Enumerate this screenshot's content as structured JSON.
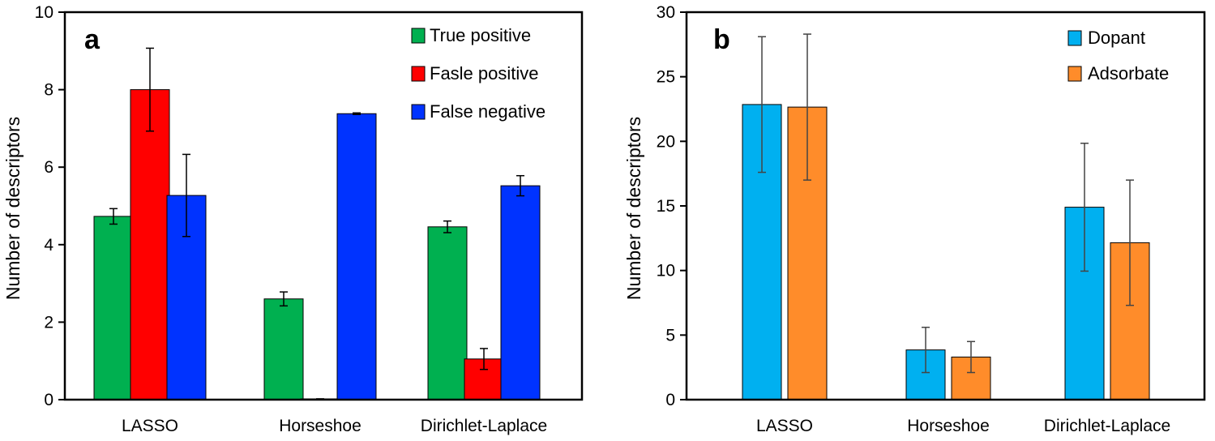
{
  "chart_data": [
    {
      "type": "bar",
      "panel_label": "a",
      "title": "",
      "xlabel": "",
      "ylabel": "Number of descriptors",
      "ylim": [
        0,
        10
      ],
      "yticks": [
        0,
        2,
        4,
        6,
        8,
        10
      ],
      "grid": false,
      "legend_position": "top-right",
      "categories": [
        "LASSO",
        "Horseshoe",
        "Dirichlet-Laplace"
      ],
      "series": [
        {
          "name": "True positive",
          "color": "#00b050",
          "values": [
            4.73,
            2.6,
            4.46
          ],
          "errors": [
            0.2,
            0.18,
            0.15
          ]
        },
        {
          "name": "Fasle positive",
          "color": "#ff0000",
          "values": [
            8.0,
            0.02,
            1.05
          ],
          "errors": [
            1.07,
            0.0,
            0.27
          ]
        },
        {
          "name": "False negative",
          "color": "#0033ff",
          "values": [
            5.27,
            7.38,
            5.52
          ],
          "errors": [
            1.06,
            0.02,
            0.26
          ]
        }
      ]
    },
    {
      "type": "bar",
      "panel_label": "b",
      "title": "",
      "xlabel": "",
      "ylabel": "Number of descriptors",
      "ylim": [
        0,
        30
      ],
      "yticks": [
        0,
        5,
        10,
        15,
        20,
        25,
        30
      ],
      "grid": false,
      "legend_position": "top-right",
      "categories": [
        "LASSO",
        "Horseshoe",
        "Dirichlet-Laplace"
      ],
      "series": [
        {
          "name": "Dopant",
          "color": "#00b0f0",
          "values": [
            22.85,
            3.85,
            14.9
          ],
          "errors": [
            5.25,
            1.75,
            4.95
          ]
        },
        {
          "name": "Adsorbate",
          "color": "#ff8c2a",
          "values": [
            22.65,
            3.3,
            12.15
          ],
          "errors": [
            5.65,
            1.2,
            4.85
          ]
        }
      ]
    }
  ]
}
